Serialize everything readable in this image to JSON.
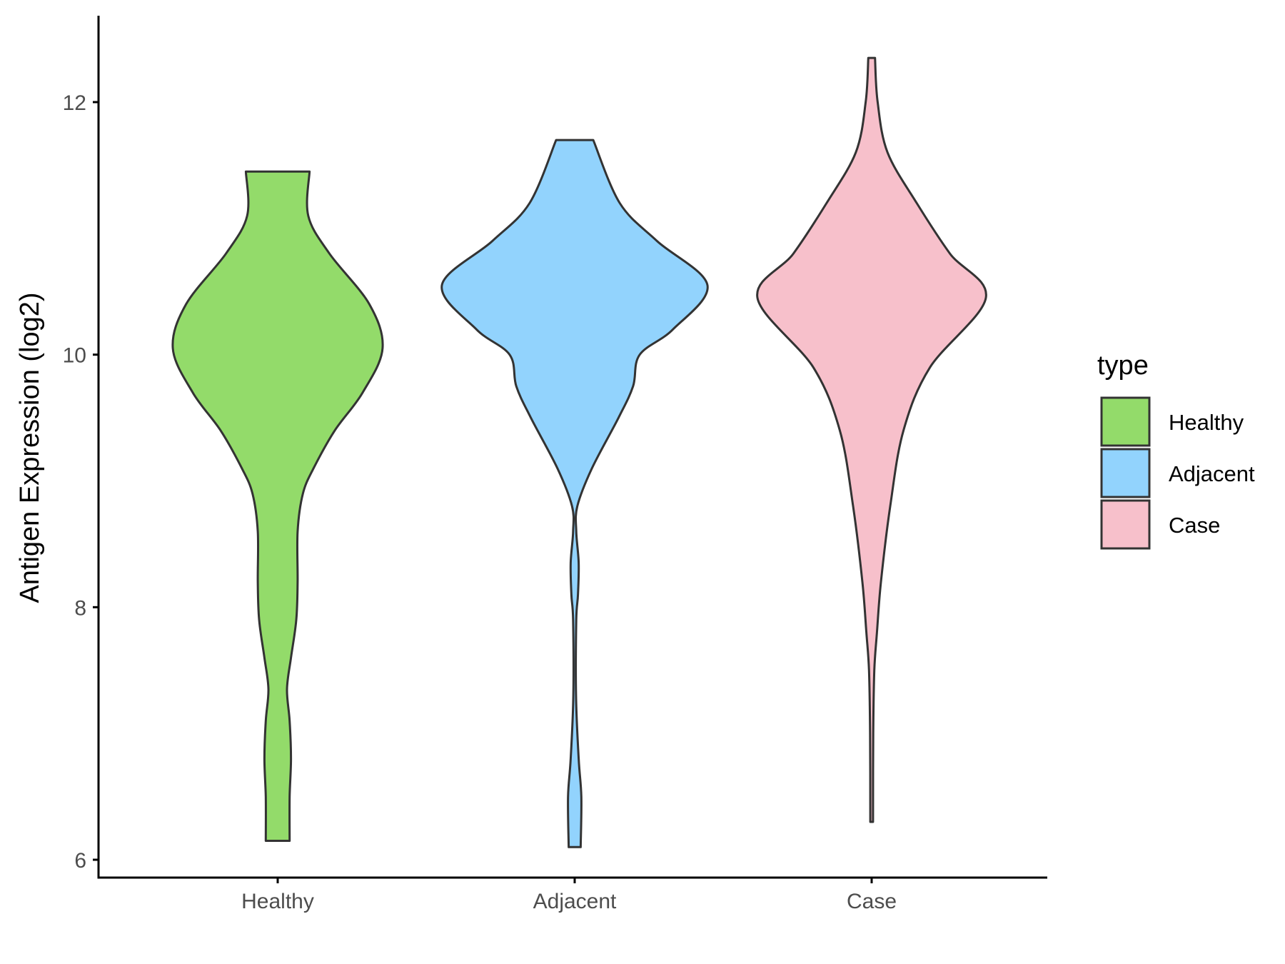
{
  "chart_data": {
    "type": "violin",
    "title": "",
    "xlabel": "",
    "ylabel": "Antigen Expression (log2)",
    "ylim": [
      5.8,
      12.7
    ],
    "yticks": [
      6,
      8,
      10,
      12
    ],
    "categories": [
      "Healthy",
      "Adjacent",
      "Case"
    ],
    "legend": {
      "title": "type",
      "position": "right",
      "entries": [
        "Healthy",
        "Adjacent",
        "Case"
      ]
    },
    "grid": false,
    "series": [
      {
        "name": "Healthy",
        "color": "#93DB6A",
        "min": 6.15,
        "max": 11.45,
        "density_profile": [
          [
            6.15,
            0.09
          ],
          [
            6.5,
            0.09
          ],
          [
            6.8,
            0.1
          ],
          [
            7.1,
            0.09
          ],
          [
            7.35,
            0.07
          ],
          [
            7.6,
            0.1
          ],
          [
            7.9,
            0.14
          ],
          [
            8.2,
            0.15
          ],
          [
            8.6,
            0.15
          ],
          [
            8.9,
            0.19
          ],
          [
            9.1,
            0.27
          ],
          [
            9.4,
            0.43
          ],
          [
            9.7,
            0.64
          ],
          [
            10.05,
            0.79
          ],
          [
            10.4,
            0.69
          ],
          [
            10.8,
            0.39
          ],
          [
            11.1,
            0.23
          ],
          [
            11.45,
            0.24
          ]
        ]
      },
      {
        "name": "Adjacent",
        "color": "#92D3FD",
        "min": 6.1,
        "max": 11.7,
        "density_profile": [
          [
            6.1,
            0.045
          ],
          [
            6.5,
            0.05
          ],
          [
            6.8,
            0.03
          ],
          [
            7.3,
            0.01
          ],
          [
            7.9,
            0.012
          ],
          [
            8.1,
            0.025
          ],
          [
            8.35,
            0.03
          ],
          [
            8.6,
            0.012
          ],
          [
            8.8,
            0.02
          ],
          [
            9.1,
            0.13
          ],
          [
            9.5,
            0.33
          ],
          [
            9.75,
            0.44
          ],
          [
            10.0,
            0.49
          ],
          [
            10.2,
            0.74
          ],
          [
            10.55,
            1.0
          ],
          [
            10.9,
            0.62
          ],
          [
            11.2,
            0.34
          ],
          [
            11.7,
            0.14
          ]
        ]
      },
      {
        "name": "Case",
        "color": "#F7C0CB",
        "min": 6.3,
        "max": 12.35,
        "density_profile": [
          [
            6.3,
            0.01
          ],
          [
            7.0,
            0.012
          ],
          [
            7.5,
            0.02
          ],
          [
            7.8,
            0.04
          ],
          [
            8.2,
            0.07
          ],
          [
            8.8,
            0.14
          ],
          [
            9.4,
            0.24
          ],
          [
            9.9,
            0.44
          ],
          [
            10.45,
            0.86
          ],
          [
            10.8,
            0.59
          ],
          [
            11.2,
            0.34
          ],
          [
            11.6,
            0.12
          ],
          [
            12.0,
            0.045
          ],
          [
            12.35,
            0.025
          ]
        ]
      }
    ]
  }
}
